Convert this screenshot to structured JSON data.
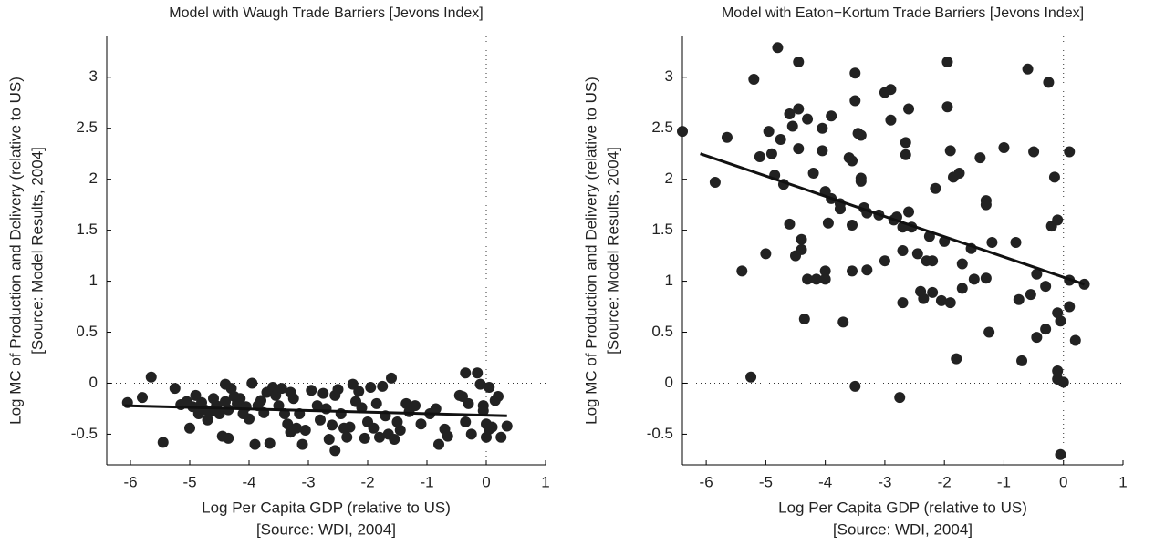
{
  "chart_data": [
    {
      "type": "scatter",
      "title": "Model with Waugh Trade Barriers [Jevons Index]",
      "x_label": [
        "Log Per Capita GDP (relative to US)",
        "[Source: WDI, 2004]"
      ],
      "y_label": [
        "Log MC of Production and Delivery (relative to US)",
        "[Source: Model Results, 2004]"
      ],
      "xlim": [
        -6.4,
        1
      ],
      "ylim": [
        -0.8,
        3.4
      ],
      "xticks": [
        -6,
        -5,
        -4,
        -3,
        -2,
        -1,
        0,
        1
      ],
      "yticks": [
        -0.5,
        0,
        0.5,
        1,
        1.5,
        2,
        2.5,
        3
      ],
      "reference_x": 0,
      "reference_y": 0,
      "fit_line": {
        "x": [
          -6.1,
          0.35
        ],
        "values": [
          -0.22,
          -0.32
        ]
      },
      "series": [
        {
          "color": "#222222",
          "x": [
            -6.05,
            -5.8,
            -5.65,
            -5.45,
            -5.25,
            -5.15,
            -5.05,
            -5.0,
            -4.95,
            -4.9,
            -4.85,
            -4.8,
            -4.75,
            -4.7,
            -4.65,
            -4.6,
            -4.55,
            -4.5,
            -4.45,
            -4.4,
            -4.4,
            -4.35,
            -4.35,
            -4.3,
            -4.25,
            -4.2,
            -4.15,
            -4.1,
            -4.05,
            -4.0,
            -3.95,
            -3.9,
            -3.85,
            -3.8,
            -3.75,
            -3.7,
            -3.65,
            -3.6,
            -3.55,
            -3.5,
            -3.45,
            -3.4,
            -3.35,
            -3.3,
            -3.3,
            -3.25,
            -3.2,
            -3.15,
            -3.1,
            -3.05,
            -2.95,
            -2.85,
            -2.8,
            -2.75,
            -2.7,
            -2.65,
            -2.6,
            -2.55,
            -2.55,
            -2.5,
            -2.45,
            -2.4,
            -2.35,
            -2.3,
            -2.25,
            -2.2,
            -2.15,
            -2.1,
            -2.05,
            -2.0,
            -1.95,
            -1.9,
            -1.85,
            -1.8,
            -1.75,
            -1.7,
            -1.65,
            -1.6,
            -1.55,
            -1.5,
            -1.45,
            -1.35,
            -1.3,
            -1.2,
            -1.1,
            -0.95,
            -0.85,
            -0.8,
            -0.7,
            -0.65,
            -0.45,
            -0.4,
            -0.35,
            -0.35,
            -0.3,
            -0.25,
            -0.15,
            -0.1,
            -0.05,
            -0.05,
            0.0,
            0.0,
            0.05,
            0.05,
            0.1,
            0.15,
            0.2,
            0.25,
            0.35
          ],
          "values": [
            -0.19,
            -0.14,
            0.06,
            -0.58,
            -0.05,
            -0.21,
            -0.18,
            -0.44,
            -0.23,
            -0.12,
            -0.3,
            -0.19,
            -0.26,
            -0.36,
            -0.28,
            -0.15,
            -0.22,
            -0.3,
            -0.52,
            -0.01,
            -0.18,
            -0.26,
            -0.54,
            -0.05,
            -0.13,
            -0.2,
            -0.15,
            -0.3,
            -0.23,
            -0.35,
            0.0,
            -0.6,
            -0.22,
            -0.17,
            -0.29,
            -0.09,
            -0.59,
            -0.04,
            -0.12,
            -0.22,
            -0.05,
            -0.3,
            -0.4,
            -0.48,
            -0.09,
            -0.15,
            -0.44,
            -0.3,
            -0.6,
            -0.46,
            -0.07,
            -0.22,
            -0.36,
            -0.1,
            -0.25,
            -0.55,
            -0.41,
            -0.12,
            -0.66,
            -0.06,
            -0.3,
            -0.44,
            -0.53,
            -0.43,
            -0.01,
            -0.18,
            -0.08,
            -0.24,
            -0.54,
            -0.38,
            -0.04,
            -0.44,
            -0.2,
            -0.53,
            -0.03,
            -0.32,
            -0.5,
            0.05,
            -0.55,
            -0.38,
            -0.46,
            -0.2,
            -0.28,
            -0.22,
            -0.4,
            -0.3,
            -0.25,
            -0.6,
            -0.45,
            -0.52,
            -0.12,
            -0.13,
            0.1,
            -0.38,
            -0.2,
            -0.5,
            0.1,
            -0.01,
            -0.22,
            -0.27,
            -0.4,
            -0.53,
            -0.04,
            -0.45,
            -0.43,
            -0.17,
            -0.13,
            -0.53,
            -0.42
          ]
        }
      ]
    },
    {
      "type": "scatter",
      "title": "Model with Eaton−Kortum Trade Barriers [Jevons Index]",
      "x_label": [
        "Log Per Capita GDP (relative to US)",
        "[Source: WDI, 2004]"
      ],
      "y_label": [
        "Log MC of Production and Delivery (relative to US)",
        "[Source: Model Results, 2004]"
      ],
      "xlim": [
        -6.4,
        1
      ],
      "ylim": [
        -0.8,
        3.4
      ],
      "xticks": [
        -6,
        -5,
        -4,
        -3,
        -2,
        -1,
        0,
        1
      ],
      "yticks": [
        -0.5,
        0,
        0.5,
        1,
        1.5,
        2,
        2.5,
        3
      ],
      "reference_x": 0,
      "reference_y": 0,
      "fit_line": {
        "x": [
          -6.1,
          0.35
        ],
        "values": [
          2.25,
          0.97
        ]
      },
      "series": [
        {
          "color": "#222222",
          "x": [
            -6.4,
            -5.85,
            -5.65,
            -5.4,
            -5.25,
            -5.2,
            -5.1,
            -5.0,
            -4.95,
            -4.9,
            -4.85,
            -4.8,
            -4.75,
            -4.7,
            -4.6,
            -4.6,
            -4.55,
            -4.5,
            -4.45,
            -4.45,
            -4.45,
            -4.4,
            -4.4,
            -4.35,
            -4.3,
            -4.3,
            -4.2,
            -4.15,
            -4.05,
            -4.05,
            -4.0,
            -4.0,
            -4.0,
            -3.95,
            -3.9,
            -3.9,
            -3.75,
            -3.75,
            -3.7,
            -3.6,
            -3.55,
            -3.55,
            -3.55,
            -3.5,
            -3.5,
            -3.5,
            -3.45,
            -3.4,
            -3.4,
            -3.4,
            -3.35,
            -3.3,
            -3.3,
            -3.1,
            -3.0,
            -3.0,
            -2.9,
            -2.9,
            -2.85,
            -2.8,
            -2.75,
            -2.7,
            -2.7,
            -2.7,
            -2.65,
            -2.65,
            -2.6,
            -2.6,
            -2.55,
            -2.45,
            -2.4,
            -2.35,
            -2.3,
            -2.25,
            -2.2,
            -2.2,
            -2.15,
            -2.05,
            -2.0,
            -1.95,
            -1.95,
            -1.9,
            -1.9,
            -1.85,
            -1.8,
            -1.75,
            -1.7,
            -1.7,
            -1.55,
            -1.5,
            -1.4,
            -1.3,
            -1.3,
            -1.3,
            -1.25,
            -1.2,
            -1.0,
            -0.8,
            -0.75,
            -0.7,
            -0.6,
            -0.55,
            -0.5,
            -0.45,
            -0.45,
            -0.3,
            -0.3,
            -0.25,
            -0.2,
            -0.15,
            -0.1,
            -0.1,
            -0.1,
            -0.1,
            -0.05,
            -0.05,
            0.0,
            0.1,
            0.1,
            0.1,
            0.2,
            0.35
          ],
          "values": [
            2.47,
            1.97,
            2.41,
            1.1,
            0.06,
            2.98,
            2.22,
            1.27,
            2.47,
            2.25,
            2.04,
            3.29,
            2.39,
            1.95,
            2.64,
            1.56,
            2.52,
            1.25,
            2.69,
            2.3,
            3.15,
            1.41,
            1.31,
            0.63,
            2.59,
            1.02,
            2.06,
            1.02,
            2.5,
            2.28,
            1.88,
            1.1,
            1.02,
            1.57,
            2.62,
            1.81,
            1.76,
            1.71,
            0.6,
            2.21,
            2.18,
            1.55,
            1.1,
            3.04,
            2.77,
            -0.03,
            2.45,
            2.43,
            1.98,
            2.01,
            1.72,
            1.67,
            1.11,
            1.65,
            2.85,
            1.2,
            2.58,
            2.88,
            1.6,
            1.63,
            -0.14,
            1.53,
            1.3,
            0.79,
            2.36,
            2.24,
            2.69,
            1.68,
            1.53,
            1.27,
            0.9,
            0.83,
            1.2,
            1.44,
            1.2,
            0.89,
            1.91,
            0.81,
            1.39,
            3.15,
            2.71,
            2.28,
            0.79,
            2.02,
            0.24,
            2.06,
            1.17,
            0.93,
            1.32,
            1.02,
            2.21,
            1.79,
            1.75,
            1.03,
            0.5,
            1.38,
            2.31,
            1.38,
            0.82,
            0.22,
            3.08,
            0.87,
            2.27,
            1.07,
            0.45,
            0.95,
            0.53,
            2.95,
            1.54,
            2.02,
            1.6,
            0.69,
            0.12,
            0.04,
            0.61,
            -0.7,
            0.01,
            2.27,
            1.01,
            0.75,
            0.42,
            0.97
          ]
        }
      ]
    }
  ]
}
